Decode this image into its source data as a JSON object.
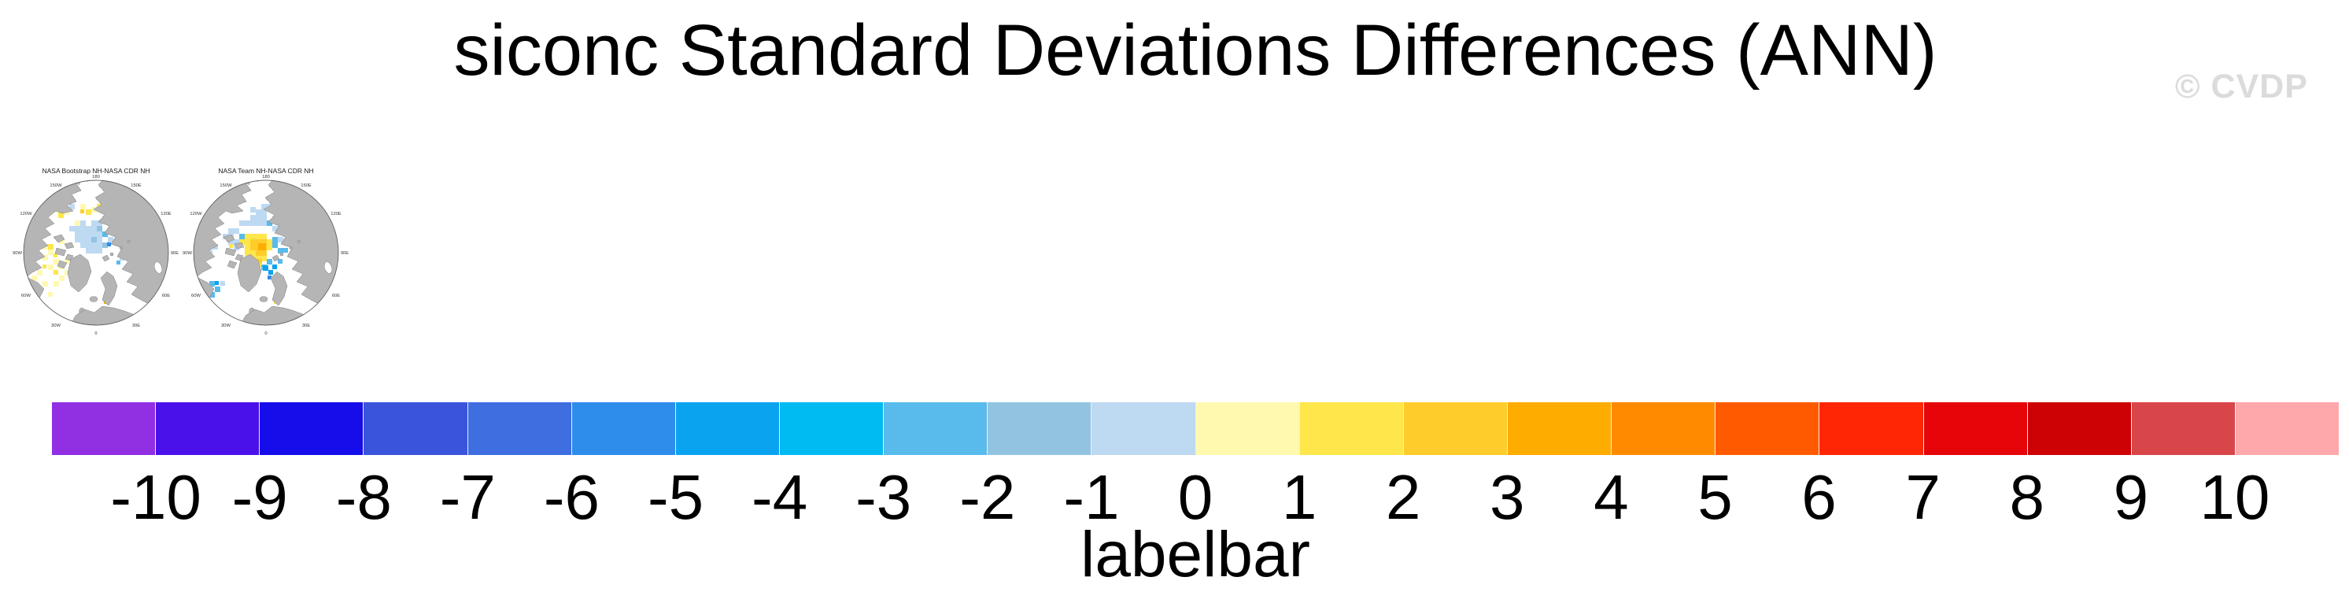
{
  "header": {
    "title": "siconc Standard Deviations Differences (ANN)",
    "watermark": "© CVDP"
  },
  "maps": {
    "panel_titles": [
      "NASA Bootstrap NH-NASA CDR NH",
      "NASA Team NH-NASA CDR NH"
    ],
    "lon_labels": [
      "180",
      "150W",
      "150E",
      "120W",
      "120E",
      "90W",
      "90E",
      "60W",
      "60E",
      "30W",
      "30E",
      "0"
    ],
    "land_color": "#B5B5B5",
    "coastline_color": "#878787",
    "ocean_color": "#FFFFFF",
    "circle_outline_color": "#5F5F5F"
  },
  "labelbar": {
    "title": "labelbar",
    "ticks": [
      "-10",
      "-9",
      "-8",
      "-7",
      "-6",
      "-5",
      "-4",
      "-3",
      "-2",
      "-1",
      "0",
      "1",
      "2",
      "3",
      "4",
      "5",
      "6",
      "7",
      "8",
      "9",
      "10"
    ],
    "colors": [
      "#912FE3",
      "#4B11EB",
      "#160DEB",
      "#3A54DB",
      "#3E6EE0",
      "#2E8CEB",
      "#0AA3F0",
      "#00BAF2",
      "#58BBEB",
      "#92C4E2",
      "#BED9F2",
      "#FFF9B0",
      "#FFE64B",
      "#FFCD2B",
      "#FFAC00",
      "#FF8A00",
      "#FF5A00",
      "#FF2605",
      "#E60509",
      "#CC0205",
      "#D8464A",
      "#FFA8AC"
    ]
  },
  "chart_data": {
    "type": "heatmap",
    "title": "siconc Standard Deviations Differences (ANN)",
    "panels": [
      {
        "title": "NASA Bootstrap NH-NASA CDR NH",
        "projection": "north polar stereographic, 180 at top, 0 at bottom",
        "summary": "Weak negative differences (about -1) over the central Arctic Ocean; weak positive cells (about +1) along the Siberian coast, Canadian Archipelago, Baffin Bay and Labrador Sea; one +3/+4 cell on the Norwegian coast"
      },
      {
        "title": "NASA Team NH-NASA CDR NH",
        "projection": "north polar stereographic, 180 at top, 0 at bottom",
        "summary": "Positive core (about +1 to +4) near the pole toward the Kara Sea; negative cells (about -1 to -5) over surrounding Arctic seas, Barents Sea and Labrador Sea; one +1 cell on the Norwegian coast"
      }
    ],
    "colorbar_label": "labelbar",
    "tick_values": [
      -10,
      -9,
      -8,
      -7,
      -6,
      -5,
      -4,
      -3,
      -2,
      -1,
      0,
      1,
      2,
      3,
      4,
      5,
      6,
      7,
      8,
      9,
      10
    ],
    "value_range": [
      -10,
      10
    ],
    "n_colors": 22,
    "legend_position": "bottom",
    "grid": false
  }
}
